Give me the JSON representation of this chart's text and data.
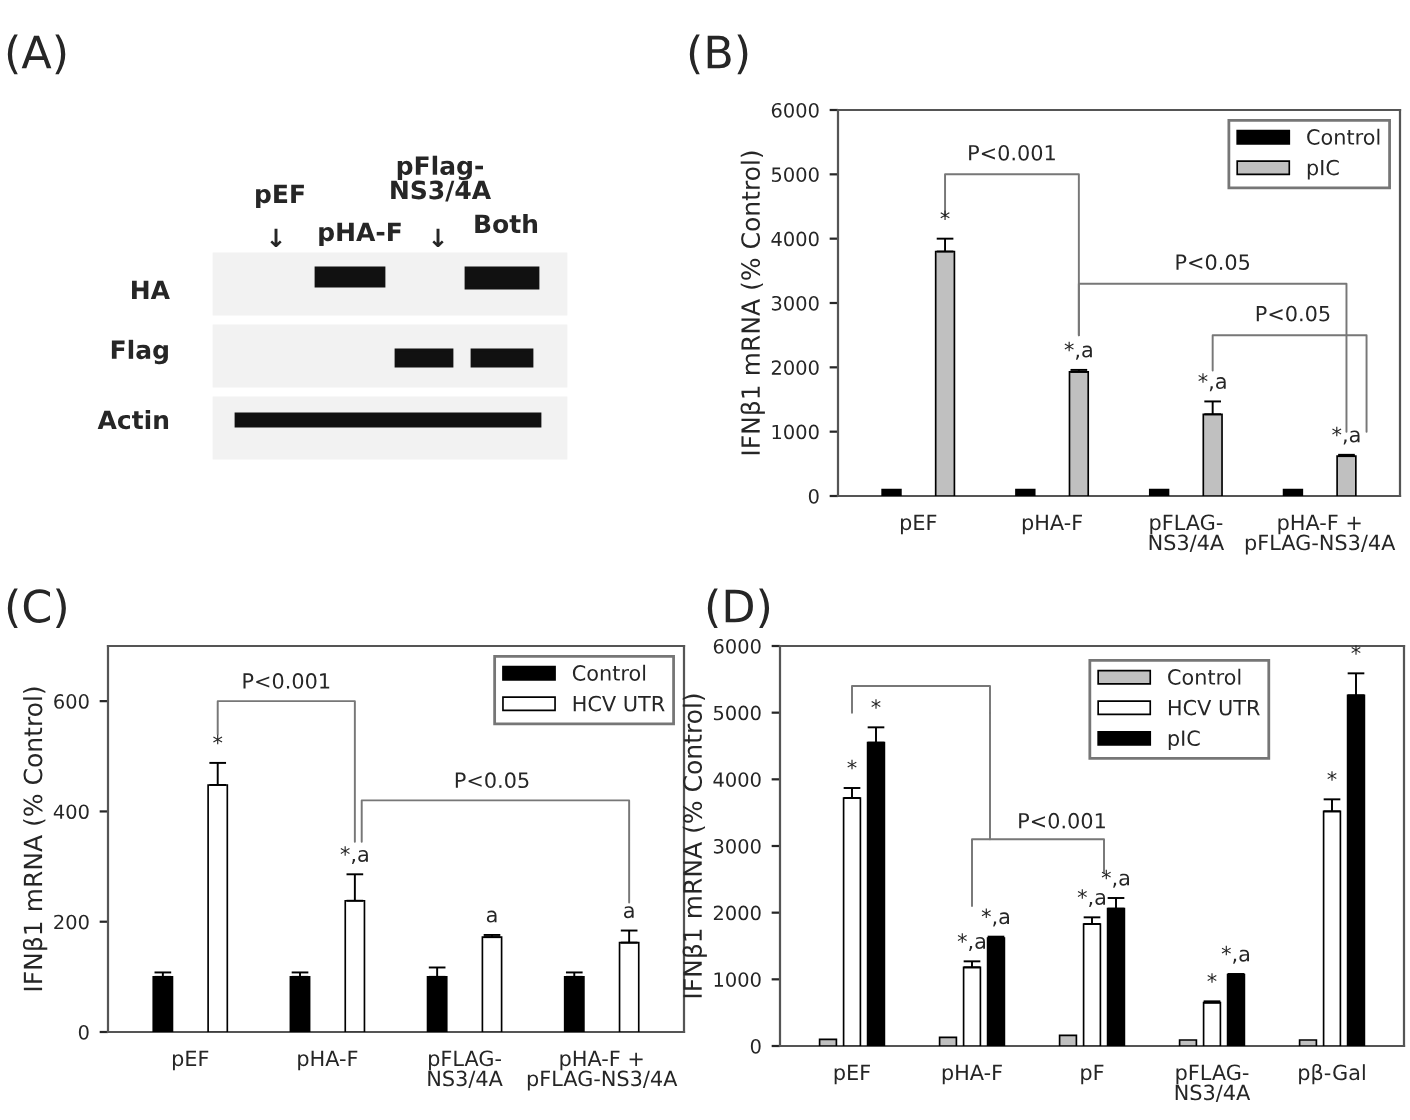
{
  "chart_data": [
    {
      "type": "other",
      "title": "(A)",
      "annotations": [
        "pEF",
        "↓",
        "pHA-F",
        "pFlag-\nNS3/4A",
        "↓",
        "Both",
        "HA",
        "Flag",
        "Actin"
      ]
    },
    {
      "type": "bar",
      "title": "(B)",
      "ylabel": "IFNβ1 mRNA (% Control)",
      "categories": [
        "pEF",
        "pHA-F",
        "pFLAG-\nNS3/4A",
        "pHA-F +\npFLAG-NS3/4A"
      ],
      "ylim": [
        0,
        6000
      ],
      "yticks": [
        0,
        1000,
        2000,
        3000,
        4000,
        5000,
        6000
      ],
      "legend": "top right",
      "grid": false,
      "series": [
        {
          "name": "Control",
          "color": "#000000",
          "values": [
            100,
            100,
            100,
            100
          ]
        },
        {
          "name": "pIC",
          "color": "#c0c0c0",
          "values": [
            3800,
            1930,
            1270,
            620
          ],
          "errors": [
            [
              3800,
              4000
            ],
            [
              1930,
              1960
            ],
            [
              1270,
              1470
            ],
            [
              620,
              640
            ]
          ]
        }
      ],
      "annotations": [
        "P<0.001",
        "P<0.05",
        "P<0.05",
        "*",
        "*,a",
        "*,a",
        "*,a"
      ]
    },
    {
      "type": "bar",
      "title": "(C)",
      "ylabel": "IFNβ1 mRNA (% Control)",
      "categories": [
        "pEF",
        "pHA-F",
        "pFLAG-\nNS3/4A",
        "pHA-F +\npFLAG-NS3/4A"
      ],
      "ylim": [
        0,
        700
      ],
      "yticks": [
        0,
        200,
        400,
        600
      ],
      "legend": "top right",
      "grid": false,
      "series": [
        {
          "name": "Control",
          "color": "#000000",
          "values": [
            100,
            100,
            100,
            100
          ],
          "errors": [
            [
              100,
              108
            ],
            [
              100,
              108
            ],
            [
              100,
              117
            ],
            [
              100,
              108
            ]
          ]
        },
        {
          "name": "HCV UTR",
          "color": "#ffffff",
          "values": [
            448,
            238,
            172,
            162
          ],
          "errors": [
            [
              448,
              488
            ],
            [
              238,
              286
            ],
            [
              172,
              176
            ],
            [
              162,
              184
            ]
          ]
        }
      ],
      "annotations": [
        "P<0.001",
        "P<0.05",
        "*",
        "*,a",
        "a",
        "a"
      ]
    },
    {
      "type": "bar",
      "title": "(D)",
      "ylabel": "IFNβ1 mRNA (% Control)",
      "categories": [
        "pEF",
        "pHA-F",
        "pF",
        "pFLAG-\nNS3/4A",
        "pβ-Gal"
      ],
      "ylim": [
        0,
        6000
      ],
      "yticks": [
        0,
        1000,
        2000,
        3000,
        4000,
        5000,
        6000
      ],
      "legend": "top right",
      "grid": false,
      "series": [
        {
          "name": "Control",
          "color": "#c0c0c0",
          "values": [
            100,
            130,
            160,
            90,
            90
          ]
        },
        {
          "name": "HCV UTR",
          "color": "#ffffff",
          "values": [
            3720,
            1180,
            1830,
            650,
            3520
          ],
          "errors": [
            [
              3720,
              3870
            ],
            [
              1180,
              1270
            ],
            [
              1830,
              1930
            ],
            [
              650,
              670
            ],
            [
              3520,
              3700
            ]
          ]
        },
        {
          "name": "pIC",
          "color": "#000000",
          "values": [
            4550,
            1620,
            2060,
            1070,
            5260
          ],
          "errors": [
            [
              4550,
              4780
            ],
            [
              1620,
              1640
            ],
            [
              2060,
              2220
            ],
            [
              1070,
              1080
            ],
            [
              5260,
              5590
            ]
          ]
        }
      ],
      "annotations": [
        "P<0.001",
        "*",
        "*",
        "*,a",
        "*,a",
        "*,a",
        "*,a",
        "*",
        "*,a",
        "*",
        "*"
      ]
    }
  ]
}
